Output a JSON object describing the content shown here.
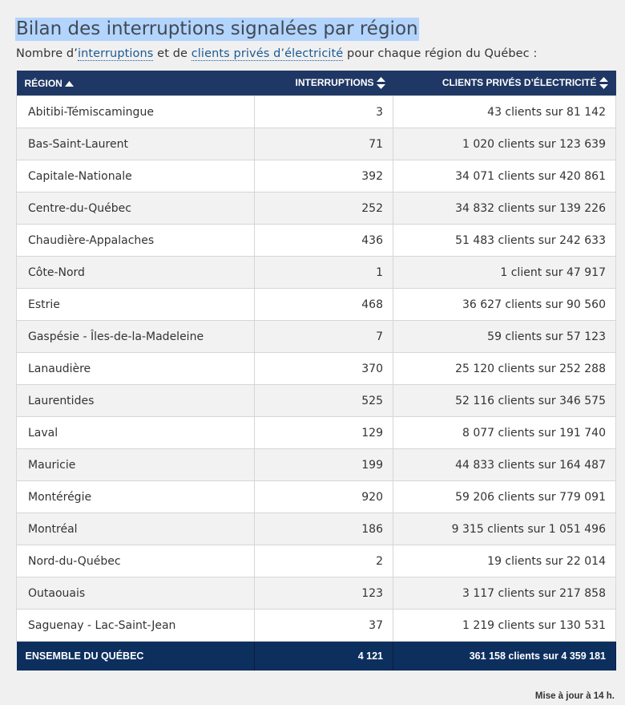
{
  "title": "Bilan des interruptions signalées par région",
  "subtitle": {
    "prefix": "Nombre d’",
    "link1": "interruptions",
    "middle": " et de ",
    "link2": "clients privés d’électricité",
    "suffix": " pour chaque région du Québec :"
  },
  "table": {
    "headers": {
      "region": "Région",
      "interruptions": "Interruptions",
      "clients": "Clients privés d’électricité"
    },
    "rows": [
      {
        "region": "Abitibi-Témiscamingue",
        "interruptions": "3",
        "clients": "43 clients sur 81 142"
      },
      {
        "region": "Bas-Saint-Laurent",
        "interruptions": "71",
        "clients": "1 020 clients sur 123 639"
      },
      {
        "region": "Capitale-Nationale",
        "interruptions": "392",
        "clients": "34 071 clients sur 420 861"
      },
      {
        "region": "Centre-du-Québec",
        "interruptions": "252",
        "clients": "34 832 clients sur 139 226"
      },
      {
        "region": "Chaudière-Appalaches",
        "interruptions": "436",
        "clients": "51 483 clients sur 242 633"
      },
      {
        "region": "Côte-Nord",
        "interruptions": "1",
        "clients": "1 client sur 47 917"
      },
      {
        "region": "Estrie",
        "interruptions": "468",
        "clients": "36 627 clients sur 90 560"
      },
      {
        "region": "Gaspésie - Îles-de-la-Madeleine",
        "interruptions": "7",
        "clients": "59 clients sur 57 123"
      },
      {
        "region": "Lanaudière",
        "interruptions": "370",
        "clients": "25 120 clients sur 252 288"
      },
      {
        "region": "Laurentides",
        "interruptions": "525",
        "clients": "52 116 clients sur 346 575"
      },
      {
        "region": "Laval",
        "interruptions": "129",
        "clients": "8 077 clients sur 191 740"
      },
      {
        "region": "Mauricie",
        "interruptions": "199",
        "clients": "44 833 clients sur 164 487"
      },
      {
        "region": "Montérégie",
        "interruptions": "920",
        "clients": "59 206 clients sur 779 091"
      },
      {
        "region": "Montréal",
        "interruptions": "186",
        "clients": "9 315 clients sur 1 051 496"
      },
      {
        "region": "Nord-du-Québec",
        "interruptions": "2",
        "clients": "19 clients sur 22 014"
      },
      {
        "region": "Outaouais",
        "interruptions": "123",
        "clients": "3 117 clients sur 217 858"
      },
      {
        "region": "Saguenay - Lac-Saint-Jean",
        "interruptions": "37",
        "clients": "1 219 clients sur 130 531"
      }
    ],
    "total": {
      "region": "Ensemble du Québec",
      "interruptions": "4 121",
      "clients": "361 158 clients sur 4 359 181"
    }
  },
  "updated": "Mise à jour à 14 h.",
  "colors": {
    "header_bg": "#1f3764",
    "total_bg": "#0d2f5e",
    "link": "#1a5a96",
    "title_highlight": "#b3d4fc"
  },
  "icons": {
    "sort_active": "sort-ascending-icon",
    "sort_inactive": "sort-both-icon"
  }
}
